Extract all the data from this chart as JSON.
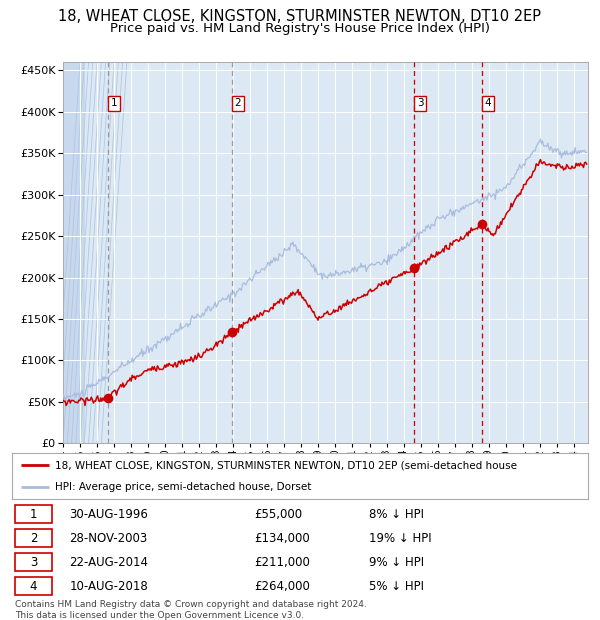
{
  "title": "18, WHEAT CLOSE, KINGSTON, STURMINSTER NEWTON, DT10 2EP",
  "subtitle": "Price paid vs. HM Land Registry's House Price Index (HPI)",
  "title_fontsize": 10.5,
  "subtitle_fontsize": 9.5,
  "ylim": [
    0,
    460000
  ],
  "yticks": [
    0,
    50000,
    100000,
    150000,
    200000,
    250000,
    300000,
    350000,
    400000,
    450000
  ],
  "bg_color": "#dce9f5",
  "grid_color": "#ffffff",
  "red_line_color": "#cc0000",
  "blue_line_color": "#aabcdd",
  "sale_dates": [
    1996.66,
    2003.91,
    2014.64,
    2018.61
  ],
  "sale_prices": [
    55000,
    134000,
    211000,
    264000
  ],
  "sale_labels": [
    "1",
    "2",
    "3",
    "4"
  ],
  "legend_red": "18, WHEAT CLOSE, KINGSTON, STURMINSTER NEWTON, DT10 2EP (semi-detached house",
  "legend_blue": "HPI: Average price, semi-detached house, Dorset",
  "table_rows": [
    [
      "1",
      "30-AUG-1996",
      "£55,000",
      "8% ↓ HPI"
    ],
    [
      "2",
      "28-NOV-2003",
      "£134,000",
      "19% ↓ HPI"
    ],
    [
      "3",
      "22-AUG-2014",
      "£211,000",
      "9% ↓ HPI"
    ],
    [
      "4",
      "10-AUG-2018",
      "£264,000",
      "5% ↓ HPI"
    ]
  ],
  "footer": "Contains HM Land Registry data © Crown copyright and database right 2024.\nThis data is licensed under the Open Government Licence v3.0.",
  "xlim_start": 1994.0,
  "xlim_end": 2024.83
}
